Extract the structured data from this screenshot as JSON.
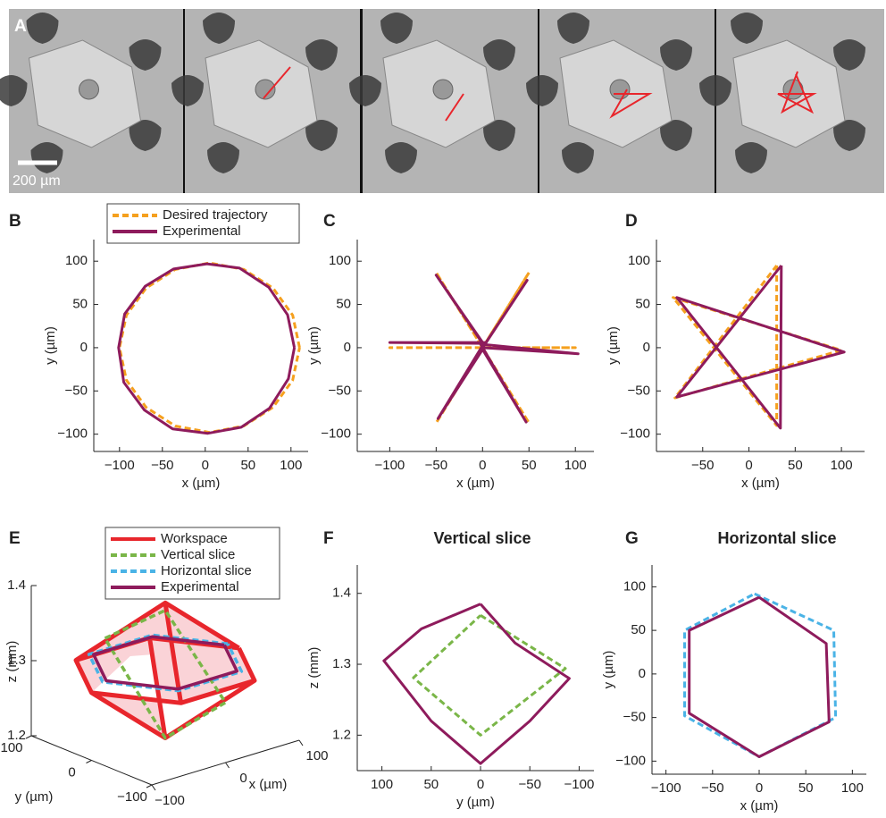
{
  "panel_a": {
    "label": "A",
    "scale_bar": "200 µm"
  },
  "chart_data": [
    {
      "type": "line",
      "panel": "B",
      "xlabel": "x (µm)",
      "ylabel": "y (µm)",
      "xlim": [
        -130,
        120
      ],
      "ylim": [
        -120,
        125
      ],
      "xticks": [
        {
          "value": -100,
          "label": "−100"
        },
        {
          "value": -50,
          "label": "−50"
        },
        0,
        50,
        100
      ],
      "yticks": [
        {
          "value": -100,
          "label": "−100"
        },
        {
          "value": -50,
          "label": "−50"
        },
        0,
        50,
        100
      ],
      "legend": "top",
      "series": [
        {
          "name": "Desired trajectory",
          "color": "#f5a01e",
          "style": "dashed",
          "x": [
            110,
            102,
            79,
            45,
            5,
            -35,
            -69,
            -92,
            -100,
            -92,
            -69,
            -35,
            5,
            45,
            79,
            102,
            110
          ],
          "values": [
            0,
            37.5,
            69,
            90.5,
            98,
            90.5,
            69,
            37.5,
            0,
            -37.5,
            -69,
            -90.5,
            -98,
            -90.5,
            -69,
            -37.5,
            0
          ]
        },
        {
          "name": "Experimental",
          "color": "#8e1b5c",
          "style": "solid",
          "x": [
            104,
            96,
            74,
            40,
            2,
            -37,
            -70,
            -94,
            -101,
            -95,
            -71,
            -38,
            3,
            42,
            75,
            97,
            104
          ],
          "values": [
            0,
            38,
            70,
            92,
            97,
            91,
            71,
            39,
            0,
            -40,
            -72,
            -94,
            -99,
            -92,
            -70,
            -36,
            0
          ]
        }
      ]
    },
    {
      "type": "line",
      "panel": "C",
      "xlabel": "x (µm)",
      "ylabel": "y (µm)",
      "xlim": [
        -135,
        120
      ],
      "ylim": [
        -120,
        125
      ],
      "xticks": [
        {
          "value": -100,
          "label": "−100"
        },
        {
          "value": -50,
          "label": "−50"
        },
        0,
        50,
        100
      ],
      "yticks": [
        {
          "value": -100,
          "label": "−100"
        },
        {
          "value": -50,
          "label": "−50"
        },
        0,
        50,
        100
      ],
      "series": [
        {
          "color": "#f5a01e",
          "style": "dashed",
          "x": [
            0,
            50,
            0,
            100,
            0,
            50,
            0,
            -50,
            0,
            -100,
            0,
            -50,
            0
          ],
          "values": [
            0,
            87,
            0,
            0,
            0,
            -87,
            0,
            -87,
            0,
            0,
            0,
            87,
            0
          ]
        },
        {
          "color": "#8e1b5c",
          "style": "solid",
          "x": [
            2,
            48,
            0,
            103,
            -2,
            47,
            0,
            -48,
            2,
            -100,
            0,
            -50,
            2
          ],
          "values": [
            3,
            78,
            0,
            -7,
            4,
            -86,
            -2,
            -82,
            6,
            6,
            5,
            84,
            3
          ]
        }
      ]
    },
    {
      "type": "line",
      "panel": "D",
      "xlabel": "x (µm)",
      "ylabel": "y (µm)",
      "xlim": [
        -100,
        125
      ],
      "ylim": [
        -120,
        125
      ],
      "xticks": [
        {
          "value": -50,
          "label": "−50"
        },
        0,
        50,
        100
      ],
      "yticks": [
        {
          "value": -100,
          "label": "−100"
        },
        {
          "value": -50,
          "label": "−50"
        },
        0,
        50,
        100
      ],
      "series": [
        {
          "color": "#f5a01e",
          "style": "dashed",
          "x": [
            30,
            30,
            -82,
            100,
            -80,
            30
          ],
          "values": [
            95,
            -90,
            58,
            -3,
            -58,
            95
          ]
        },
        {
          "color": "#8e1b5c",
          "style": "solid",
          "x": [
            35,
            34,
            -78,
            103,
            -78,
            35
          ],
          "values": [
            95,
            -93,
            58,
            -5,
            -57,
            95
          ]
        }
      ]
    },
    {
      "type": "line3d",
      "panel": "E",
      "xlabel": "x (µm)",
      "ylabel": "y (µm)",
      "zlabel": "z (mm)",
      "xlim": [
        -100,
        100
      ],
      "ylim": [
        -100,
        100
      ],
      "zlim": [
        1.2,
        1.4
      ],
      "xticks": [
        {
          "value": -100,
          "label": "−100"
        },
        0,
        100
      ],
      "yticks": [
        {
          "value": -100,
          "label": "−100"
        },
        0,
        100
      ],
      "zticks": [
        1.2,
        1.3,
        1.4
      ],
      "legend": "top",
      "series": [
        {
          "name": "Workspace",
          "color": "#e8262c",
          "style": "solid",
          "x": [
            100,
            50,
            -50,
            -100,
            -50,
            50,
            100,
            null,
            100,
            0,
            -50,
            null,
            -50,
            0,
            null,
            50,
            0,
            -100,
            null,
            50,
            0
          ],
          "y": [
            0,
            87,
            87,
            0,
            -87,
            -87,
            0,
            null,
            0,
            0,
            87,
            null,
            -87,
            0,
            null,
            87,
            0,
            0,
            null,
            -87,
            0
          ],
          "z": [
            1.29,
            1.29,
            1.29,
            1.29,
            1.29,
            1.29,
            1.29,
            null,
            1.29,
            1.38,
            1.29,
            null,
            1.29,
            1.38,
            null,
            1.29,
            1.2,
            1.29,
            null,
            1.29,
            1.2
          ]
        },
        {
          "name": "Vertical slice",
          "color": "#7ab648",
          "style": "dashed",
          "x": [
            0,
            0,
            0,
            0,
            0
          ],
          "y": [
            100,
            0,
            -100,
            0,
            100
          ],
          "z": [
            1.3,
            1.37,
            1.28,
            1.2,
            1.3
          ]
        },
        {
          "name": "Horizontal slice",
          "color": "#4ab3e6",
          "style": "dashed",
          "x": [
            85,
            43,
            -43,
            -85,
            -43,
            43,
            85
          ],
          "y": [
            0,
            74,
            74,
            0,
            -74,
            -74,
            0
          ],
          "z": [
            1.3,
            1.3,
            1.3,
            1.3,
            1.3,
            1.3,
            1.3
          ]
        },
        {
          "name": "Experimental",
          "color": "#8e1b5c",
          "style": "solid",
          "x": [
            80,
            40,
            -40,
            -80,
            -40,
            40,
            80
          ],
          "y": [
            0,
            70,
            70,
            0,
            -70,
            -70,
            0
          ],
          "z": [
            1.3,
            1.3,
            1.3,
            1.3,
            1.3,
            1.3,
            1.3
          ]
        }
      ]
    },
    {
      "type": "line",
      "panel": "F",
      "title": "Vertical slice",
      "xlabel": "y (µm)",
      "ylabel": "z (mm)",
      "xlim": [
        125,
        -115
      ],
      "ylim": [
        1.15,
        1.44
      ],
      "xticks": [
        100,
        50,
        0,
        {
          "value": -50,
          "label": "−50"
        },
        {
          "value": -100,
          "label": "−100"
        }
      ],
      "yticks": [
        1.2,
        1.3,
        1.4
      ],
      "series": [
        {
          "color": "#7ab648",
          "style": "dashed",
          "x": [
            0,
            -86,
            0,
            68,
            0
          ],
          "values": [
            1.369,
            1.294,
            1.2,
            1.281,
            1.369
          ]
        },
        {
          "color": "#8e1b5c",
          "style": "solid",
          "x": [
            0,
            -35,
            -90,
            -50,
            0,
            50,
            98,
            60,
            0
          ],
          "values": [
            1.385,
            1.33,
            1.28,
            1.22,
            1.16,
            1.22,
            1.305,
            1.35,
            1.385
          ]
        }
      ]
    },
    {
      "type": "line",
      "panel": "G",
      "title": "Horizontal slice",
      "xlabel": "x (µm)",
      "ylabel": "y (µm)",
      "xlim": [
        -115,
        115
      ],
      "ylim": [
        -115,
        125
      ],
      "xticks": [
        {
          "value": -100,
          "label": "−100"
        },
        {
          "value": -50,
          "label": "−50"
        },
        0,
        50,
        100
      ],
      "yticks": [
        {
          "value": -100,
          "label": "−100"
        },
        {
          "value": -50,
          "label": "−50"
        },
        0,
        50,
        100
      ],
      "series": [
        {
          "color": "#4ab3e6",
          "style": "dashed",
          "x": [
            -5,
            80,
            82,
            0,
            -80,
            -80,
            -5
          ],
          "values": [
            92,
            50,
            -50,
            -95,
            -48,
            50,
            92
          ]
        },
        {
          "color": "#8e1b5c",
          "style": "solid",
          "x": [
            0,
            72,
            75,
            0,
            -75,
            -75,
            0
          ],
          "values": [
            88,
            35,
            -55,
            -95,
            -45,
            50,
            88
          ]
        }
      ]
    }
  ]
}
